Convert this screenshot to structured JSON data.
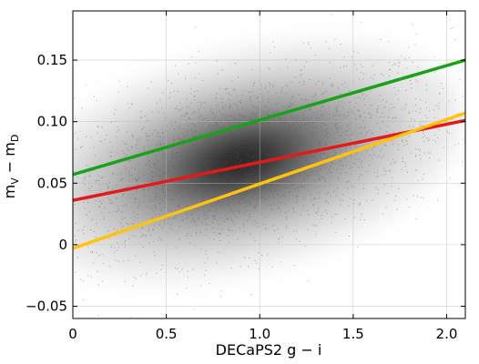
{
  "chart_data": {
    "type": "scatter",
    "xlabel": "DECaPS2 g − i",
    "ylabel_main": "m",
    "ylabel_sub1": "V",
    "ylabel_mid": " − m",
    "ylabel_sub2": "D",
    "xlim": [
      0,
      2.1
    ],
    "ylim": [
      -0.06,
      0.19
    ],
    "x_ticks": [
      {
        "value": 0,
        "label": "0"
      },
      {
        "value": 0.5,
        "label": "0.5"
      },
      {
        "value": 1.0,
        "label": "1.0"
      },
      {
        "value": 1.5,
        "label": "1.5"
      },
      {
        "value": 2.0,
        "label": "2.0"
      }
    ],
    "y_ticks": [
      {
        "value": -0.05,
        "label": "−0.05"
      },
      {
        "value": 0,
        "label": "0"
      },
      {
        "value": 0.05,
        "label": "0.05"
      },
      {
        "value": 0.1,
        "label": "0.10"
      },
      {
        "value": 0.15,
        "label": "0.15"
      }
    ],
    "grid": true,
    "density": {
      "center": [
        0.9,
        0.068
      ],
      "sigma_x": 0.35,
      "sigma_y": 0.025,
      "correlation": 0.45
    },
    "lines": [
      {
        "color": "#1aa11a",
        "x": [
          0,
          2.1
        ],
        "y": [
          0.057,
          0.15
        ]
      },
      {
        "color": "#e41a1a",
        "x": [
          0,
          2.1
        ],
        "y": [
          0.036,
          0.101
        ]
      },
      {
        "color": "#ffc20e",
        "x": [
          0,
          2.1
        ],
        "y": [
          -0.003,
          0.107
        ]
      }
    ]
  }
}
